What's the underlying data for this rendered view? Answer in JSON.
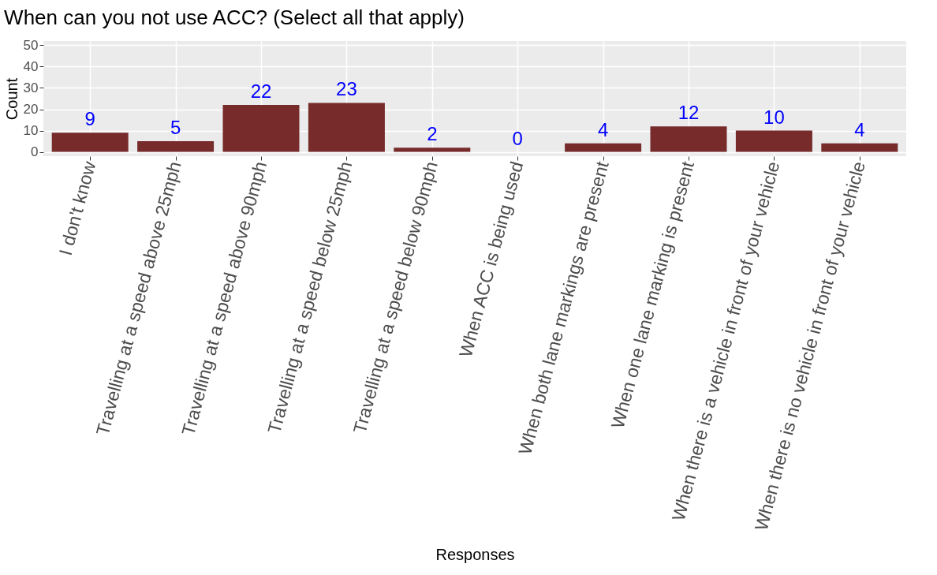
{
  "chart_data": {
    "type": "bar",
    "title": "When can you not use ACC? (Select all that apply)",
    "xlabel": "Responses",
    "ylabel": "Count",
    "categories": [
      "I don't know",
      "Travelling at a speed above 25mph",
      "Travelling at a speed above 90mph",
      "Travelling at a speed below 25mph",
      "Travelling at a speed below 90mph",
      "When ACC is being used",
      "When both lane markings are present",
      "When one lane marking is present",
      "When there is a vehicle in front of your vehicle",
      "When there is no vehicle in front of your vehicle"
    ],
    "values": [
      9,
      5,
      22,
      23,
      2,
      0,
      4,
      12,
      10,
      4
    ],
    "color": "#772b2b",
    "data_labels": true,
    "ylim": [
      -2,
      52
    ],
    "yticks": [
      0,
      10,
      20,
      30,
      40,
      50
    ],
    "grid": true
  }
}
